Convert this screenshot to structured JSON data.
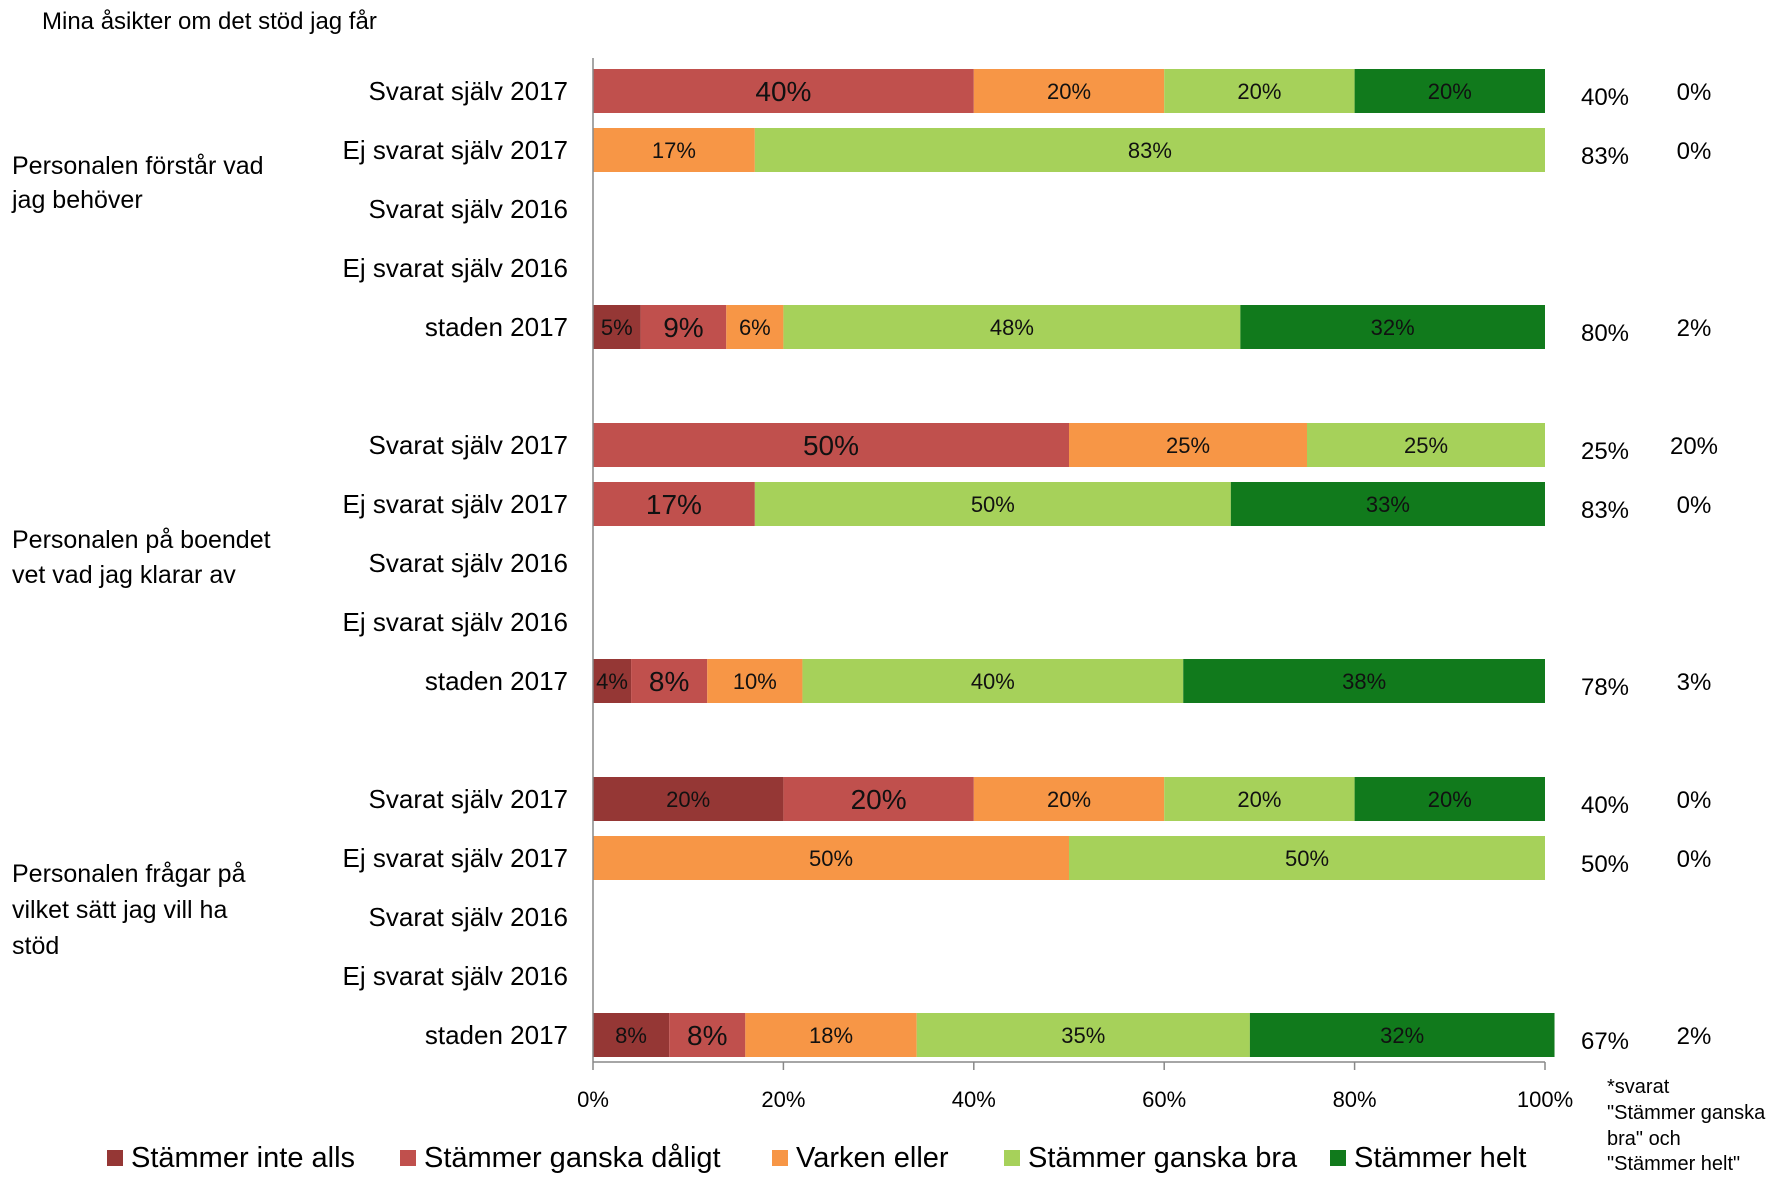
{
  "chart_data": {
    "type": "bar",
    "orientation": "horizontal",
    "stacked": "percent",
    "title": "Mina åsikter om det stöd jag får",
    "xlim": [
      0,
      100
    ],
    "x_ticks": [
      "0%",
      "20%",
      "40%",
      "60%",
      "80%",
      "100%"
    ],
    "grid": false,
    "legend_position": "bottom",
    "series": [
      {
        "name": "Stämmer inte alls",
        "color": "#953735"
      },
      {
        "name": "Stämmer ganska dåligt",
        "color": "#c0504d"
      },
      {
        "name": "Varken eller",
        "color": "#f79646"
      },
      {
        "name": "Stämmer ganska bra",
        "color": "#a6d15a"
      },
      {
        "name": "Stämmer helt",
        "color": "#117a1c"
      }
    ],
    "groups": [
      {
        "label": "Personalen förstår vad jag behöver",
        "label_lines": [
          "Personalen förstår vad",
          "jag behöver"
        ],
        "rows": [
          {
            "label": "Svarat själv 2017",
            "values": [
              0,
              40,
              20,
              20,
              20
            ],
            "value_labels": [
              "",
              "40%",
              "20%",
              "20%",
              "20%"
            ],
            "col1": "40%",
            "col2": "0%"
          },
          {
            "label": "Ej svarat själv 2017",
            "values": [
              0,
              0,
              17,
              83,
              0
            ],
            "value_labels": [
              "",
              "",
              "17%",
              "83%",
              ""
            ],
            "col1": "83%",
            "col2": "0%"
          },
          {
            "label": "Svarat själv 2016",
            "values": [
              0,
              0,
              0,
              0,
              0
            ],
            "value_labels": [
              "",
              "",
              "",
              "",
              ""
            ],
            "col1": "",
            "col2": ""
          },
          {
            "label": "Ej svarat själv 2016",
            "values": [
              0,
              0,
              0,
              0,
              0
            ],
            "value_labels": [
              "",
              "",
              "",
              "",
              ""
            ],
            "col1": "",
            "col2": ""
          },
          {
            "label": "staden 2017",
            "values": [
              5,
              9,
              6,
              48,
              32
            ],
            "value_labels": [
              "5%",
              "9%",
              "6%",
              "48%",
              "32%"
            ],
            "col1": "80%",
            "col2": "2%"
          }
        ]
      },
      {
        "label": "Personalen på boendet vet vad jag klarar av",
        "label_lines": [
          "Personalen på boendet",
          "vet vad jag klarar av"
        ],
        "rows": [
          {
            "label": "Svarat själv 2017",
            "values": [
              0,
              50,
              25,
              25,
              0
            ],
            "value_labels": [
              "",
              "50%",
              "25%",
              "25%",
              ""
            ],
            "col1": "25%",
            "col2": "20%"
          },
          {
            "label": "Ej svarat själv 2017",
            "values": [
              0,
              17,
              0,
              50,
              33
            ],
            "value_labels": [
              "",
              "17%",
              "",
              "50%",
              "33%"
            ],
            "col1": "83%",
            "col2": "0%"
          },
          {
            "label": "Svarat själv 2016",
            "values": [
              0,
              0,
              0,
              0,
              0
            ],
            "value_labels": [
              "",
              "",
              "",
              "",
              ""
            ],
            "col1": "",
            "col2": ""
          },
          {
            "label": "Ej svarat själv 2016",
            "values": [
              0,
              0,
              0,
              0,
              0
            ],
            "value_labels": [
              "",
              "",
              "",
              "",
              ""
            ],
            "col1": "",
            "col2": ""
          },
          {
            "label": "staden 2017",
            "values": [
              4,
              8,
              10,
              40,
              38
            ],
            "value_labels": [
              "4%",
              "8%",
              "10%",
              "40%",
              "38%"
            ],
            "col1": "78%",
            "col2": "3%"
          }
        ]
      },
      {
        "label": "Personalen frågar på vilket sätt jag vill ha stöd",
        "label_lines": [
          "Personalen frågar på",
          "vilket sätt jag vill ha",
          "stöd"
        ],
        "rows": [
          {
            "label": "Svarat själv 2017",
            "values": [
              20,
              20,
              20,
              20,
              20
            ],
            "value_labels": [
              "20%",
              "20%",
              "20%",
              "20%",
              "20%"
            ],
            "col1": "40%",
            "col2": "0%"
          },
          {
            "label": "Ej svarat själv 2017",
            "values": [
              0,
              0,
              50,
              50,
              0
            ],
            "value_labels": [
              "",
              "",
              "50%",
              "50%",
              ""
            ],
            "col1": "50%",
            "col2": "0%"
          },
          {
            "label": "Svarat själv 2016",
            "values": [
              0,
              0,
              0,
              0,
              0
            ],
            "value_labels": [
              "",
              "",
              "",
              "",
              ""
            ],
            "col1": "",
            "col2": ""
          },
          {
            "label": "Ej svarat själv 2016",
            "values": [
              0,
              0,
              0,
              0,
              0
            ],
            "value_labels": [
              "",
              "",
              "",
              "",
              ""
            ],
            "col1": "",
            "col2": ""
          },
          {
            "label": "staden 2017",
            "values": [
              8,
              8,
              18,
              35,
              32
            ],
            "value_labels": [
              "8%",
              "8%",
              "18%",
              "35%",
              "32%"
            ],
            "col1": "67%",
            "col2": "2%"
          }
        ]
      }
    ],
    "footnote_lines": [
      "*svarat",
      "\"Stämmer ganska",
      "bra\" och",
      "\"Stämmer helt\""
    ]
  }
}
